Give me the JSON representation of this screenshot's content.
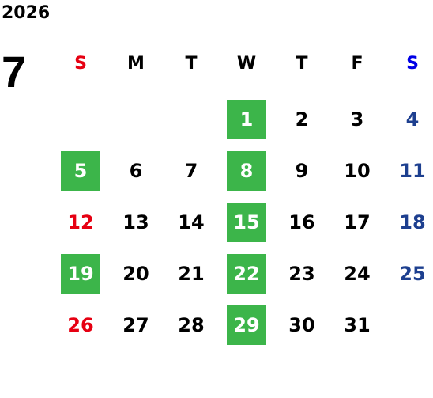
{
  "year": "2026",
  "month": "7",
  "weekdays": [
    {
      "label": "S",
      "color": "#e60012"
    },
    {
      "label": "M",
      "color": "#000000"
    },
    {
      "label": "T",
      "color": "#000000"
    },
    {
      "label": "W",
      "color": "#000000"
    },
    {
      "label": "T",
      "color": "#000000"
    },
    {
      "label": "F",
      "color": "#000000"
    },
    {
      "label": "S",
      "color": "#0000e6"
    }
  ],
  "colors": {
    "highlight": "#3cb54a",
    "sunday": "#e60012",
    "saturday": "#1d3f8f",
    "weekday": "#000000"
  },
  "first_weekday": 3,
  "days_in_month": 31,
  "highlighted_days": [
    1,
    5,
    8,
    15,
    19,
    22,
    29
  ],
  "days": [
    "1",
    "2",
    "3",
    "4",
    "5",
    "6",
    "7",
    "8",
    "9",
    "10",
    "11",
    "12",
    "13",
    "14",
    "15",
    "16",
    "17",
    "18",
    "19",
    "20",
    "21",
    "22",
    "23",
    "24",
    "25",
    "26",
    "27",
    "28",
    "29",
    "30",
    "31"
  ]
}
